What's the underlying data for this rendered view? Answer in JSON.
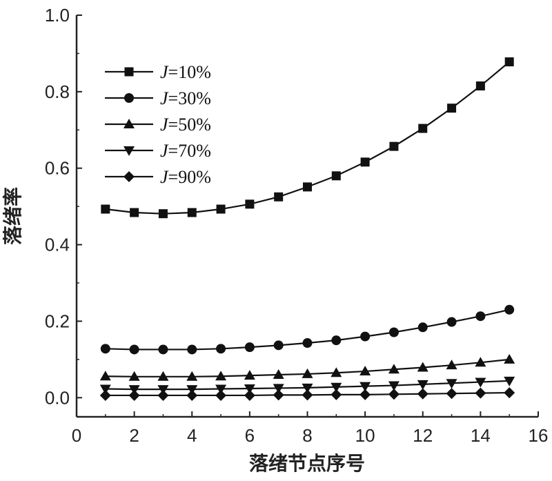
{
  "chart_data": {
    "type": "line",
    "xlabel": "落绪节点序号",
    "ylabel": "落绪率",
    "xlim": [
      0,
      16
    ],
    "ylim": [
      -0.05,
      1.0
    ],
    "xticks": [
      "0",
      "2",
      "4",
      "6",
      "8",
      "10",
      "12",
      "14",
      "16"
    ],
    "yticks": [
      "0.0",
      "0.2",
      "0.4",
      "0.6",
      "0.8",
      "1.0"
    ],
    "grid": false,
    "legend_position": "top-left",
    "x": [
      1,
      2,
      3,
      4,
      5,
      6,
      7,
      8,
      9,
      10,
      11,
      12,
      13,
      14,
      15
    ],
    "series": [
      {
        "name": "J=10%",
        "name_var": "J",
        "name_rest": "=10%",
        "marker": "square",
        "values": [
          0.493,
          0.484,
          0.481,
          0.484,
          0.493,
          0.506,
          0.525,
          0.551,
          0.58,
          0.616,
          0.657,
          0.704,
          0.757,
          0.815,
          0.878
        ]
      },
      {
        "name": "J=30%",
        "name_var": "J",
        "name_rest": "=30%",
        "marker": "circle",
        "values": [
          0.128,
          0.126,
          0.126,
          0.126,
          0.128,
          0.132,
          0.137,
          0.143,
          0.15,
          0.16,
          0.171,
          0.184,
          0.198,
          0.213,
          0.23
        ]
      },
      {
        "name": "J=50%",
        "name_var": "J",
        "name_rest": "=50%",
        "marker": "triangle-up",
        "values": [
          0.056,
          0.055,
          0.055,
          0.055,
          0.056,
          0.058,
          0.06,
          0.062,
          0.065,
          0.069,
          0.074,
          0.079,
          0.085,
          0.092,
          0.1
        ]
      },
      {
        "name": "J=70%",
        "name_var": "J",
        "name_rest": "=70%",
        "marker": "triangle-down",
        "values": [
          0.023,
          0.022,
          0.022,
          0.022,
          0.023,
          0.024,
          0.025,
          0.026,
          0.028,
          0.03,
          0.032,
          0.035,
          0.038,
          0.041,
          0.044
        ]
      },
      {
        "name": "J=90%",
        "name_var": "J",
        "name_rest": "=90%",
        "marker": "diamond",
        "values": [
          0.006,
          0.006,
          0.006,
          0.006,
          0.006,
          0.006,
          0.007,
          0.007,
          0.008,
          0.008,
          0.009,
          0.01,
          0.011,
          0.012,
          0.013
        ]
      }
    ]
  }
}
